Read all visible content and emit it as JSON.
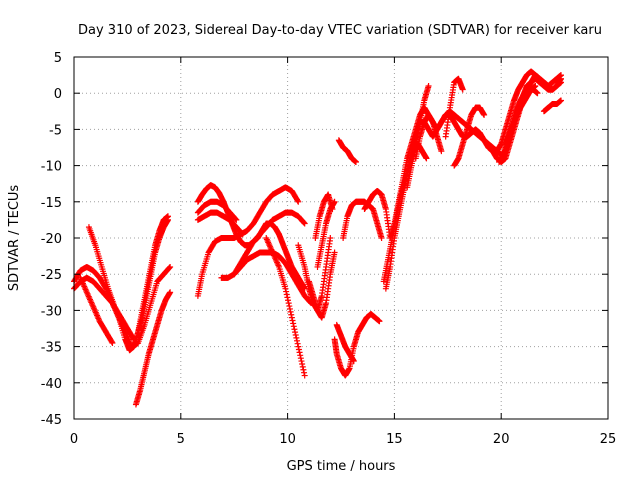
{
  "chart_data": {
    "type": "scatter",
    "title": "Day 310 of 2023, Sidereal Day-to-day VTEC variation (SDTVAR) for receiver karu",
    "xlabel": "GPS time / hours",
    "ylabel": "SDTVAR / TECUs",
    "xlim": [
      0,
      25
    ],
    "ylim": [
      -45,
      5
    ],
    "xticks": [
      0,
      5,
      10,
      15,
      20,
      25
    ],
    "yticks": [
      -45,
      -40,
      -35,
      -30,
      -25,
      -20,
      -15,
      -10,
      -5,
      0,
      5
    ],
    "grid": true,
    "marker": "plus",
    "color": "#ff0000",
    "series": [
      {
        "x": [
          0.0,
          0.3,
          0.6,
          0.9,
          1.2,
          1.5,
          1.8,
          2.1,
          2.4,
          2.6,
          2.8,
          3.0,
          3.2,
          3.4,
          3.6,
          3.8,
          4.0,
          4.2,
          4.4
        ],
        "y": [
          -27,
          -26,
          -25.5,
          -26,
          -27,
          -28,
          -29,
          -31,
          -34,
          -35.5,
          -35,
          -33,
          -30,
          -27,
          -24,
          -21,
          -19,
          -17.5,
          -17
        ]
      },
      {
        "x": [
          0.0,
          0.3,
          0.6,
          0.9,
          1.2,
          1.5,
          1.8,
          2.1,
          2.4,
          2.7,
          3.0,
          3.3,
          3.6,
          3.9,
          4.2,
          4.5
        ],
        "y": [
          -26,
          -24.5,
          -24,
          -24.5,
          -25.5,
          -27,
          -29,
          -31,
          -33,
          -35,
          -34.5,
          -32,
          -29,
          -26,
          -25,
          -24
        ]
      },
      {
        "x": [
          0.7,
          1.0,
          1.3,
          1.6,
          1.9,
          2.2,
          2.5,
          2.8
        ],
        "y": [
          -18.5,
          -21,
          -24,
          -27,
          -29.5,
          -31,
          -32.5,
          -34
        ]
      },
      {
        "x": [
          0.3,
          0.6,
          0.9,
          1.2,
          1.5,
          1.8
        ],
        "y": [
          -25.5,
          -27.5,
          -29.5,
          -31.5,
          -33,
          -34.5
        ]
      },
      {
        "x": [
          2.9,
          3.1,
          3.3,
          3.5,
          3.7,
          3.9,
          4.1,
          4.3,
          4.5
        ],
        "y": [
          -43,
          -41,
          -38.5,
          -36,
          -34,
          -32,
          -30,
          -28.5,
          -27.5
        ]
      },
      {
        "x": [
          3.0,
          3.2,
          3.4,
          3.6,
          3.8,
          4.0,
          4.2,
          4.4
        ],
        "y": [
          -33,
          -31,
          -28,
          -25,
          -22,
          -20,
          -18.5,
          -17.5
        ]
      },
      {
        "x": [
          5.8,
          6.0,
          6.3,
          6.6,
          6.9,
          7.2,
          7.5,
          7.8,
          8.1,
          8.4,
          8.7,
          9.0,
          9.3,
          9.6,
          9.9,
          10.2,
          10.5
        ],
        "y": [
          -28,
          -25,
          -22,
          -20.5,
          -20,
          -20,
          -20,
          -19.5,
          -19,
          -18,
          -16.5,
          -15,
          -14,
          -13.5,
          -13,
          -13.5,
          -15
        ]
      },
      {
        "x": [
          5.8,
          6.0,
          6.2,
          6.4,
          6.6,
          6.8,
          7.0,
          7.2,
          7.4,
          7.6,
          7.8,
          8.0,
          8.2,
          8.4,
          8.6,
          8.8,
          9.0,
          9.2,
          9.4,
          9.6,
          9.8,
          10.0,
          10.2,
          10.4,
          10.6,
          10.8
        ],
        "y": [
          -15,
          -14,
          -13.2,
          -12.7,
          -13,
          -13.8,
          -15,
          -16.5,
          -18,
          -19.5,
          -20.5,
          -21,
          -21,
          -20.5,
          -20,
          -19,
          -18,
          -18,
          -18.5,
          -19.5,
          -21,
          -22.5,
          -24,
          -25,
          -26,
          -27
        ]
      },
      {
        "x": [
          5.8,
          6.1,
          6.4,
          6.7,
          7.0,
          7.3,
          7.6
        ],
        "y": [
          -16.5,
          -15.5,
          -15,
          -15,
          -15.5,
          -16.5,
          -17.5
        ]
      },
      {
        "x": [
          5.8,
          6.1,
          6.4,
          6.7,
          7.0,
          7.3,
          7.6,
          7.9
        ],
        "y": [
          -17.5,
          -17,
          -16.5,
          -16.5,
          -17,
          -17.5,
          -18.5,
          -19.5
        ]
      },
      {
        "x": [
          6.9,
          7.2,
          7.5,
          7.8,
          8.1,
          8.4,
          8.7,
          9.0,
          9.3,
          9.6,
          9.9,
          10.2,
          10.5,
          10.8,
          11.1
        ],
        "y": [
          -25.5,
          -25.5,
          -25,
          -24,
          -23,
          -22.5,
          -22,
          -22,
          -22,
          -22.5,
          -23.5,
          -25,
          -26.5,
          -28,
          -29
        ]
      },
      {
        "x": [
          7.5,
          7.8,
          8.1,
          8.4,
          8.7,
          9.0,
          9.3,
          9.6,
          9.9,
          10.2,
          10.5,
          10.8
        ],
        "y": [
          -25,
          -23.5,
          -22,
          -20.5,
          -19.5,
          -18.5,
          -17.5,
          -17,
          -16.5,
          -16.5,
          -17,
          -18
        ]
      },
      {
        "x": [
          9.0,
          9.3,
          9.6,
          9.9,
          10.2,
          10.5,
          10.8
        ],
        "y": [
          -20,
          -22,
          -24,
          -27,
          -31,
          -35,
          -39
        ]
      },
      {
        "x": [
          10.5,
          10.8,
          11.0,
          11.2,
          11.4,
          11.6,
          11.8,
          12.0
        ],
        "y": [
          -21,
          -24,
          -27,
          -29,
          -30,
          -28,
          -24,
          -20
        ]
      },
      {
        "x": [
          11.0,
          11.2,
          11.4,
          11.6,
          11.8,
          12.0,
          12.2
        ],
        "y": [
          -26,
          -28,
          -30,
          -31,
          -29,
          -25,
          -22
        ]
      },
      {
        "x": [
          11.3,
          11.5,
          11.7,
          11.9,
          12.1
        ],
        "y": [
          -20,
          -17,
          -15,
          -14,
          -16
        ]
      },
      {
        "x": [
          11.4,
          11.6,
          11.8,
          12.0,
          12.2
        ],
        "y": [
          -24,
          -21,
          -18,
          -16,
          -15
        ]
      },
      {
        "x": [
          12.2,
          12.3,
          12.5,
          12.7,
          12.9,
          13.1,
          13.3,
          13.5,
          13.7,
          13.9,
          14.1,
          14.3
        ],
        "y": [
          -34,
          -36,
          -38,
          -39,
          -38,
          -35,
          -33,
          -32,
          -31,
          -30.5,
          -31,
          -31.5
        ]
      },
      {
        "x": [
          12.3,
          12.5,
          12.7,
          12.9,
          13.1
        ],
        "y": [
          -32,
          -33.5,
          -35,
          -36,
          -37
        ]
      },
      {
        "x": [
          12.4,
          12.6,
          12.8,
          13.0,
          13.2
        ],
        "y": [
          -6.5,
          -7.5,
          -8,
          -9,
          -9.5
        ]
      },
      {
        "x": [
          12.6,
          12.8,
          13.0,
          13.2,
          13.4,
          13.6,
          13.8,
          14.0,
          14.2,
          14.4
        ],
        "y": [
          -20,
          -17,
          -15.5,
          -15,
          -15,
          -15,
          -15.5,
          -16,
          -18,
          -20
        ]
      },
      {
        "x": [
          13.6,
          13.8,
          14.0,
          14.2,
          14.4,
          14.6,
          14.8,
          15.0,
          15.2,
          15.4,
          15.6,
          15.8,
          16.0,
          16.2,
          16.4,
          16.6,
          16.8,
          17.0,
          17.2,
          17.4,
          17.6,
          17.8,
          18.0,
          18.2,
          18.4,
          18.6,
          18.8,
          19.0,
          19.2,
          19.4,
          19.6,
          19.8,
          20.0,
          20.2,
          20.4,
          20.6,
          20.8,
          21.0,
          21.2,
          21.4,
          21.6,
          21.8,
          22.0,
          22.2,
          22.4,
          22.6,
          22.8
        ],
        "y": [
          -16,
          -15,
          -14,
          -13.5,
          -14,
          -16,
          -20,
          -18,
          -15,
          -12,
          -9,
          -7,
          -5,
          -3,
          -2,
          -3,
          -4,
          -5,
          -4,
          -3,
          -2.5,
          -3,
          -3.5,
          -4,
          -4.5,
          -5,
          -5.5,
          -6,
          -6.5,
          -7,
          -7.5,
          -8,
          -8.5,
          -8,
          -6,
          -4,
          -2,
          -0.5,
          1,
          1.5,
          2,
          1.5,
          1,
          0.5,
          0.5,
          1,
          1.5
        ]
      },
      {
        "x": [
          14.6,
          14.8,
          15.0,
          15.2,
          15.4,
          15.6,
          15.8,
          16.0,
          16.2,
          16.4,
          16.6,
          16.8,
          17.0,
          17.2,
          17.4,
          17.6,
          17.8,
          18.0,
          18.2,
          18.4,
          18.6,
          18.8,
          19.0,
          19.2,
          19.4,
          19.6,
          19.8,
          20.0,
          20.2,
          20.4,
          20.6,
          20.8,
          21.0,
          21.2,
          21.4,
          21.6,
          21.8,
          22.0,
          22.2,
          22.4,
          22.6,
          22.8
        ],
        "y": [
          -27,
          -24,
          -20,
          -17,
          -14,
          -11,
          -8,
          -6,
          -4,
          -4,
          -5,
          -6,
          -5,
          -4,
          -3,
          -3,
          -4,
          -5,
          -6,
          -6,
          -5.5,
          -5,
          -5.5,
          -6.5,
          -7.5,
          -8,
          -9,
          -9.5,
          -9,
          -7,
          -5,
          -3,
          -1,
          0.5,
          1.5,
          2.5,
          2,
          1.5,
          1,
          0.5,
          1,
          2
        ]
      },
      {
        "x": [
          14.5,
          14.7,
          14.9,
          15.1,
          15.3,
          15.5,
          15.7,
          15.9,
          16.1,
          16.3,
          16.5
        ],
        "y": [
          -26,
          -23,
          -20,
          -17,
          -14,
          -12,
          -10,
          -8,
          -7,
          -8,
          -9
        ]
      },
      {
        "x": [
          15.6,
          15.8,
          16.0,
          16.2,
          16.4,
          16.6
        ],
        "y": [
          -13,
          -10,
          -7,
          -4,
          -1,
          1
        ]
      },
      {
        "x": [
          16.0,
          16.2,
          16.4,
          16.6,
          16.8,
          17.0,
          17.2
        ],
        "y": [
          -9,
          -6,
          -4,
          -3,
          -4,
          -6,
          -8
        ]
      },
      {
        "x": [
          17.4,
          17.6,
          17.8,
          18.0,
          18.2
        ],
        "y": [
          -6,
          -2,
          1.5,
          2,
          0.5
        ]
      },
      {
        "x": [
          17.8,
          18.0,
          18.2,
          18.4,
          18.6,
          18.8,
          19.0,
          19.2
        ],
        "y": [
          -10,
          -9,
          -7,
          -5,
          -3,
          -2,
          -2,
          -3
        ]
      },
      {
        "x": [
          19.8,
          20.0,
          20.2,
          20.4,
          20.6,
          20.8,
          21.0,
          21.2,
          21.4,
          21.6,
          21.8,
          22.0,
          22.2,
          22.4,
          22.6,
          22.8
        ],
        "y": [
          -8,
          -7,
          -5,
          -3,
          -1,
          0.5,
          1.5,
          2.5,
          3,
          2.5,
          2,
          1.5,
          1,
          1.5,
          2,
          2.5
        ]
      },
      {
        "x": [
          19.9,
          20.1,
          20.3,
          20.5,
          20.7,
          20.9,
          21.1,
          21.3,
          21.5,
          21.7
        ],
        "y": [
          -9.5,
          -8.5,
          -6.5,
          -4.5,
          -2.5,
          -1,
          0,
          0.5,
          0.5,
          0
        ]
      },
      {
        "x": [
          22.0,
          22.2,
          22.4,
          22.6,
          22.8
        ],
        "y": [
          -2.5,
          -2,
          -1.5,
          -1.5,
          -1
        ]
      },
      {
        "x": [
          20.2,
          20.4,
          20.6,
          20.8,
          21.0,
          21.2,
          21.4,
          21.6
        ],
        "y": [
          -7,
          -5.5,
          -4,
          -2.5,
          -1.5,
          -0.5,
          0.5,
          1
        ]
      }
    ]
  }
}
